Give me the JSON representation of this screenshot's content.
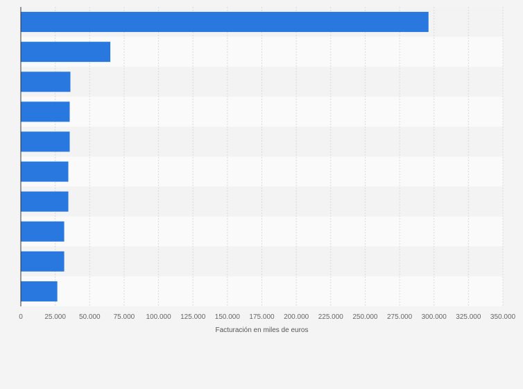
{
  "chart_data": {
    "type": "bar",
    "orientation": "horizontal",
    "categories": [
      "",
      "",
      "",
      "",
      "",
      "",
      "",
      "",
      "",
      ""
    ],
    "values": [
      296000,
      65000,
      36000,
      35500,
      35500,
      34500,
      34500,
      31500,
      31500,
      26500
    ],
    "title": "",
    "xlabel": "Facturación en miles de euros",
    "ylabel": "",
    "xlim": [
      0,
      350000
    ],
    "xticks": [
      "0",
      "25.000",
      "50.000",
      "75.000",
      "100.000",
      "125.000",
      "150.000",
      "175.000",
      "200.000",
      "225.000",
      "250.000",
      "275.000",
      "300.000",
      "325.000",
      "350.000"
    ],
    "grid": true,
    "legend": "none",
    "colors": {
      "bar": "#2878e0",
      "background": "#f4f4f4",
      "band_dark": "#f3f3f3",
      "band_light": "#fafafa",
      "grid": "#d9d9d9",
      "axis": "#333333"
    }
  }
}
